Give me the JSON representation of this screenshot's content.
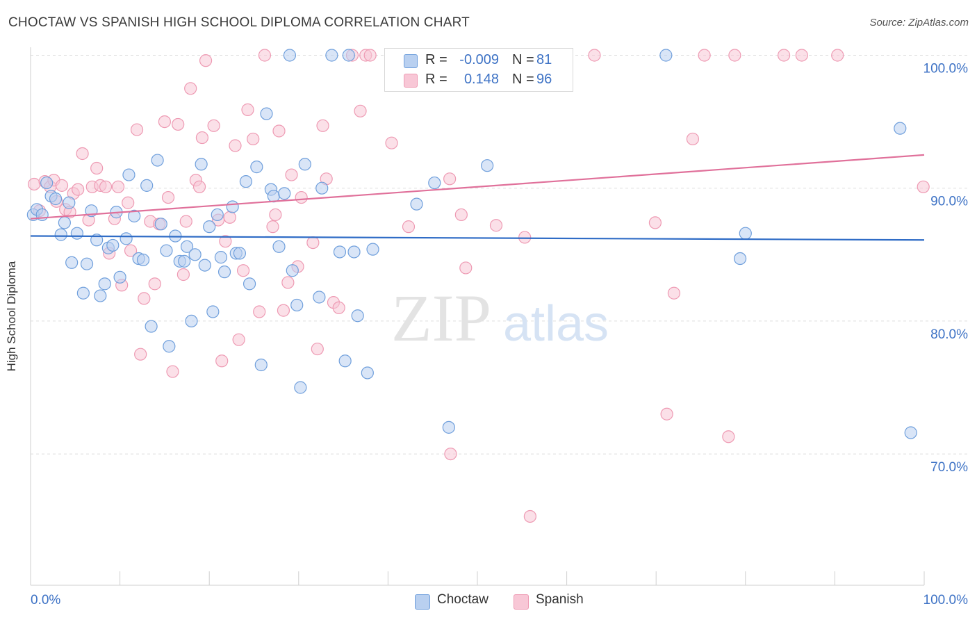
{
  "title": "CHOCTAW VS SPANISH HIGH SCHOOL DIPLOMA CORRELATION CHART",
  "source": "Source: ZipAtlas.com",
  "watermark": {
    "zip": "ZIP",
    "atlas": "atlas"
  },
  "legend": {
    "rows": [
      {
        "r_label": "R =",
        "r_value": "-0.009",
        "n_label": "N =",
        "n_value": "81"
      },
      {
        "r_label": "R =",
        "r_value": "0.148",
        "n_label": "N =",
        "n_value": "96"
      }
    ]
  },
  "bottom_legend": {
    "choctaw": "Choctaw",
    "spanish": "Spanish"
  },
  "colors": {
    "choctaw_fill": "#b9d0f0",
    "choctaw_stroke": "#6f9fdc",
    "choctaw_line": "#2f6cc6",
    "spanish_fill": "#f8c7d6",
    "spanish_stroke": "#ee9ab3",
    "spanish_line": "#e0709a",
    "tick_label": "#3d72c5",
    "grid": "#dedede"
  },
  "chart_data": {
    "type": "scatter",
    "title": "CHOCTAW VS SPANISH HIGH SCHOOL DIPLOMA CORRELATION CHART",
    "xlabel": "",
    "ylabel": "High School Diploma",
    "xlim": [
      0,
      100
    ],
    "ylim": [
      60.7,
      101.5
    ],
    "x_tick_labels": [
      "0.0%",
      "100.0%"
    ],
    "y_ticks": [
      70,
      80,
      90,
      100
    ],
    "y_tick_labels": [
      "70.0%",
      "80.0%",
      "90.0%",
      "100.0%"
    ],
    "grid": true,
    "legend_position": "top-center",
    "series": [
      {
        "name": "Choctaw",
        "trend": {
          "x": [
            0,
            100
          ],
          "y": [
            86.4,
            86.1
          ]
        },
        "points": [
          [
            0.3,
            88.0
          ],
          [
            0.7,
            88.4
          ],
          [
            1.3,
            88.0
          ],
          [
            1.8,
            90.4
          ],
          [
            2.3,
            89.4
          ],
          [
            2.8,
            89.2
          ],
          [
            3.4,
            86.5
          ],
          [
            3.8,
            87.4
          ],
          [
            4.3,
            88.9
          ],
          [
            4.6,
            84.4
          ],
          [
            5.2,
            86.6
          ],
          [
            5.9,
            82.1
          ],
          [
            6.3,
            84.3
          ],
          [
            6.8,
            88.3
          ],
          [
            7.4,
            86.1
          ],
          [
            7.8,
            81.9
          ],
          [
            8.3,
            82.8
          ],
          [
            8.7,
            85.5
          ],
          [
            9.2,
            85.7
          ],
          [
            9.6,
            88.2
          ],
          [
            10.0,
            83.3
          ],
          [
            10.7,
            86.2
          ],
          [
            11.0,
            91.0
          ],
          [
            11.6,
            87.9
          ],
          [
            12.1,
            84.7
          ],
          [
            12.6,
            84.6
          ],
          [
            13.0,
            90.2
          ],
          [
            13.5,
            79.6
          ],
          [
            14.2,
            92.1
          ],
          [
            14.6,
            87.3
          ],
          [
            15.2,
            85.3
          ],
          [
            15.5,
            78.1
          ],
          [
            16.2,
            86.4
          ],
          [
            16.7,
            84.5
          ],
          [
            17.2,
            84.5
          ],
          [
            17.5,
            85.6
          ],
          [
            18.0,
            80.0
          ],
          [
            18.4,
            85.0
          ],
          [
            19.1,
            91.8
          ],
          [
            19.5,
            84.2
          ],
          [
            20.0,
            87.1
          ],
          [
            20.4,
            80.7
          ],
          [
            20.9,
            88.0
          ],
          [
            21.3,
            84.8
          ],
          [
            21.7,
            83.7
          ],
          [
            22.6,
            88.6
          ],
          [
            23.0,
            85.1
          ],
          [
            23.4,
            85.1
          ],
          [
            24.1,
            90.5
          ],
          [
            24.5,
            82.8
          ],
          [
            25.3,
            91.6
          ],
          [
            25.8,
            76.7
          ],
          [
            26.4,
            95.6
          ],
          [
            26.9,
            89.9
          ],
          [
            27.2,
            89.4
          ],
          [
            27.8,
            85.6
          ],
          [
            28.4,
            89.6
          ],
          [
            29.3,
            83.8
          ],
          [
            29.8,
            81.2
          ],
          [
            30.2,
            75.0
          ],
          [
            30.7,
            91.8
          ],
          [
            32.3,
            81.8
          ],
          [
            32.6,
            90.0
          ],
          [
            33.7,
            100.0
          ],
          [
            34.6,
            85.2
          ],
          [
            35.2,
            77.0
          ],
          [
            35.6,
            100.0
          ],
          [
            36.2,
            85.2
          ],
          [
            36.6,
            80.4
          ],
          [
            37.7,
            76.1
          ],
          [
            38.3,
            85.4
          ],
          [
            43.2,
            88.8
          ],
          [
            45.2,
            90.4
          ],
          [
            46.8,
            72.0
          ],
          [
            51.1,
            91.7
          ],
          [
            71.1,
            100.0
          ],
          [
            79.4,
            84.7
          ],
          [
            80.0,
            86.6
          ],
          [
            97.3,
            94.5
          ],
          [
            98.5,
            71.6
          ],
          [
            29.0,
            100.0
          ]
        ]
      },
      {
        "name": "Spanish",
        "trend": {
          "x": [
            0,
            100
          ],
          "y": [
            87.7,
            92.5
          ]
        },
        "points": [
          [
            0.4,
            90.3
          ],
          [
            1.0,
            88.3
          ],
          [
            1.6,
            90.5
          ],
          [
            2.2,
            90.1
          ],
          [
            2.6,
            90.6
          ],
          [
            2.9,
            89.0
          ],
          [
            3.5,
            90.2
          ],
          [
            3.9,
            88.4
          ],
          [
            4.4,
            88.2
          ],
          [
            4.8,
            89.6
          ],
          [
            5.3,
            89.9
          ],
          [
            5.8,
            92.6
          ],
          [
            6.5,
            87.6
          ],
          [
            6.9,
            90.1
          ],
          [
            7.4,
            91.5
          ],
          [
            7.8,
            90.2
          ],
          [
            8.4,
            90.1
          ],
          [
            8.8,
            85.1
          ],
          [
            9.4,
            87.7
          ],
          [
            9.8,
            90.1
          ],
          [
            10.2,
            82.7
          ],
          [
            10.9,
            88.9
          ],
          [
            11.2,
            85.3
          ],
          [
            11.9,
            94.4
          ],
          [
            12.3,
            77.5
          ],
          [
            12.7,
            81.7
          ],
          [
            13.4,
            87.5
          ],
          [
            13.9,
            82.8
          ],
          [
            14.4,
            87.3
          ],
          [
            15.0,
            95.0
          ],
          [
            15.4,
            89.3
          ],
          [
            15.9,
            76.2
          ],
          [
            16.5,
            94.8
          ],
          [
            17.1,
            83.5
          ],
          [
            17.4,
            87.5
          ],
          [
            17.9,
            97.5
          ],
          [
            18.5,
            90.6
          ],
          [
            18.9,
            90.1
          ],
          [
            19.2,
            93.8
          ],
          [
            19.6,
            99.6
          ],
          [
            20.5,
            94.7
          ],
          [
            21.0,
            87.6
          ],
          [
            21.4,
            77.0
          ],
          [
            21.8,
            86.0
          ],
          [
            22.3,
            87.8
          ],
          [
            22.9,
            93.2
          ],
          [
            23.3,
            78.6
          ],
          [
            23.8,
            83.8
          ],
          [
            24.3,
            95.9
          ],
          [
            24.9,
            93.7
          ],
          [
            25.6,
            80.7
          ],
          [
            26.2,
            100.0
          ],
          [
            27.1,
            87.1
          ],
          [
            27.4,
            88.0
          ],
          [
            27.8,
            94.3
          ],
          [
            28.3,
            80.8
          ],
          [
            28.8,
            82.9
          ],
          [
            29.2,
            91.0
          ],
          [
            29.9,
            84.1
          ],
          [
            30.3,
            89.3
          ],
          [
            31.6,
            85.9
          ],
          [
            32.1,
            77.9
          ],
          [
            32.7,
            94.7
          ],
          [
            33.1,
            90.7
          ],
          [
            33.9,
            81.4
          ],
          [
            34.5,
            81.0
          ],
          [
            36.0,
            100.0
          ],
          [
            36.9,
            95.8
          ],
          [
            37.5,
            100.0
          ],
          [
            38.0,
            100.0
          ],
          [
            40.4,
            93.4
          ],
          [
            41.9,
            100.0
          ],
          [
            42.3,
            87.1
          ],
          [
            45.7,
            100.0
          ],
          [
            46.9,
            90.7
          ],
          [
            47.0,
            70.0
          ],
          [
            47.6,
            100.0
          ],
          [
            48.2,
            88.0
          ],
          [
            48.7,
            84.0
          ],
          [
            51.0,
            100.0
          ],
          [
            52.1,
            87.2
          ],
          [
            55.0,
            100.0
          ],
          [
            55.3,
            86.3
          ],
          [
            55.9,
            65.3
          ],
          [
            63.1,
            100.0
          ],
          [
            69.9,
            87.4
          ],
          [
            71.2,
            73.0
          ],
          [
            72.0,
            82.1
          ],
          [
            74.1,
            93.7
          ],
          [
            75.4,
            100.0
          ],
          [
            78.1,
            71.3
          ],
          [
            78.8,
            100.0
          ],
          [
            84.3,
            100.0
          ],
          [
            86.3,
            100.0
          ],
          [
            90.3,
            100.0
          ],
          [
            99.9,
            90.1
          ]
        ]
      }
    ]
  }
}
